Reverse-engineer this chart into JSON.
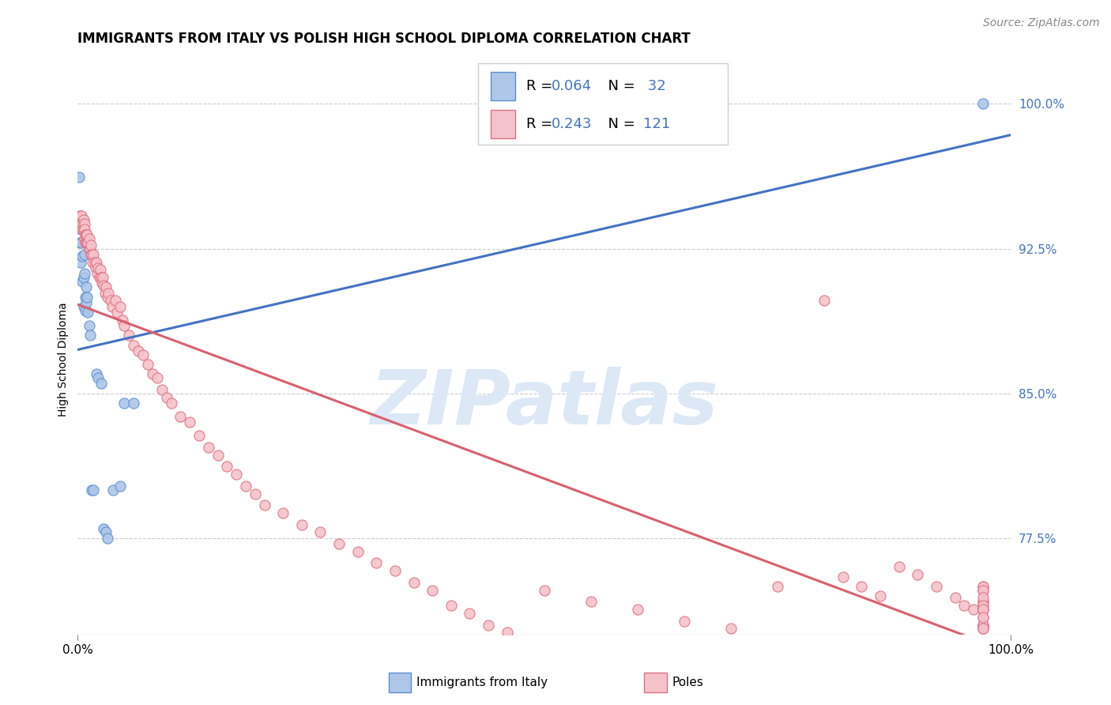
{
  "title": "IMMIGRANTS FROM ITALY VS POLISH HIGH SCHOOL DIPLOMA CORRELATION CHART",
  "source": "Source: ZipAtlas.com",
  "ylabel": "High School Diploma",
  "ytick_labels": [
    "77.5%",
    "85.0%",
    "92.5%",
    "100.0%"
  ],
  "ytick_values": [
    0.775,
    0.85,
    0.925,
    1.0
  ],
  "xtick_labels": [
    "0.0%",
    "100.0%"
  ],
  "xtick_values": [
    0.0,
    1.0
  ],
  "legend_italy_r": "0.064",
  "legend_italy_n": "32",
  "legend_poles_r": "0.243",
  "legend_poles_n": "121",
  "watermark": "ZIPatlas",
  "italy_color": "#aec6e8",
  "italy_edge_color": "#5b8fd4",
  "italy_line_color": "#4472c4",
  "poles_color": "#f5c2cb",
  "poles_edge_color": "#e07080",
  "poles_line_color": "#d9606e",
  "background_color": "#ffffff",
  "grid_color": "#cccccc",
  "tick_color": "#4472c4",
  "title_fontsize": 12,
  "source_fontsize": 10,
  "axis_label_fontsize": 10,
  "tick_fontsize": 11,
  "legend_fontsize": 13,
  "watermark_color": "#dce8f5",
  "xlim": [
    0.0,
    1.0
  ],
  "ylim": [
    0.725,
    1.01
  ],
  "italy_x": [
    0.001,
    0.002,
    0.003,
    0.003,
    0.004,
    0.005,
    0.005,
    0.006,
    0.006,
    0.007,
    0.007,
    0.008,
    0.008,
    0.009,
    0.009,
    0.01,
    0.011,
    0.012,
    0.013,
    0.015,
    0.017,
    0.02,
    0.022,
    0.025,
    0.028,
    0.03,
    0.032,
    0.038,
    0.045,
    0.05,
    0.06,
    0.97
  ],
  "italy_y": [
    0.962,
    0.928,
    0.935,
    0.918,
    0.928,
    0.921,
    0.908,
    0.91,
    0.895,
    0.922,
    0.912,
    0.9,
    0.893,
    0.897,
    0.905,
    0.9,
    0.892,
    0.885,
    0.88,
    0.8,
    0.8,
    0.86,
    0.858,
    0.855,
    0.78,
    0.778,
    0.775,
    0.8,
    0.802,
    0.845,
    0.845,
    1.0
  ],
  "poles_x": [
    0.001,
    0.002,
    0.003,
    0.003,
    0.004,
    0.004,
    0.005,
    0.005,
    0.006,
    0.006,
    0.007,
    0.007,
    0.007,
    0.008,
    0.008,
    0.009,
    0.009,
    0.01,
    0.01,
    0.011,
    0.012,
    0.012,
    0.013,
    0.014,
    0.014,
    0.015,
    0.016,
    0.017,
    0.018,
    0.019,
    0.02,
    0.021,
    0.022,
    0.023,
    0.024,
    0.025,
    0.026,
    0.027,
    0.028,
    0.029,
    0.03,
    0.032,
    0.033,
    0.035,
    0.037,
    0.04,
    0.042,
    0.045,
    0.048,
    0.05,
    0.055,
    0.06,
    0.065,
    0.07,
    0.075,
    0.08,
    0.085,
    0.09,
    0.095,
    0.1,
    0.11,
    0.12,
    0.13,
    0.14,
    0.15,
    0.16,
    0.17,
    0.18,
    0.19,
    0.2,
    0.22,
    0.24,
    0.26,
    0.28,
    0.3,
    0.32,
    0.34,
    0.36,
    0.38,
    0.4,
    0.42,
    0.44,
    0.46,
    0.5,
    0.55,
    0.6,
    0.65,
    0.7,
    0.75,
    0.8,
    0.82,
    0.84,
    0.86,
    0.88,
    0.9,
    0.92,
    0.94,
    0.95,
    0.96,
    0.97,
    0.97,
    0.97,
    0.97,
    0.97,
    0.97,
    0.97,
    0.97,
    0.97,
    0.97,
    0.97,
    0.97,
    0.97,
    0.97,
    0.97,
    0.97,
    0.97,
    0.97,
    0.97,
    0.97,
    0.97,
    0.97
  ],
  "poles_y": [
    0.94,
    0.942,
    0.942,
    0.938,
    0.938,
    0.942,
    0.938,
    0.935,
    0.935,
    0.94,
    0.938,
    0.93,
    0.935,
    0.932,
    0.928,
    0.928,
    0.932,
    0.928,
    0.932,
    0.928,
    0.925,
    0.93,
    0.925,
    0.922,
    0.927,
    0.922,
    0.918,
    0.922,
    0.918,
    0.915,
    0.918,
    0.912,
    0.915,
    0.91,
    0.914,
    0.91,
    0.907,
    0.91,
    0.906,
    0.902,
    0.905,
    0.9,
    0.902,
    0.898,
    0.895,
    0.898,
    0.892,
    0.895,
    0.888,
    0.885,
    0.88,
    0.875,
    0.872,
    0.87,
    0.865,
    0.86,
    0.858,
    0.852,
    0.848,
    0.845,
    0.838,
    0.835,
    0.828,
    0.822,
    0.818,
    0.812,
    0.808,
    0.802,
    0.798,
    0.792,
    0.788,
    0.782,
    0.778,
    0.772,
    0.768,
    0.762,
    0.758,
    0.752,
    0.748,
    0.74,
    0.736,
    0.73,
    0.726,
    0.748,
    0.742,
    0.738,
    0.732,
    0.728,
    0.75,
    0.898,
    0.755,
    0.75,
    0.745,
    0.76,
    0.756,
    0.75,
    0.744,
    0.74,
    0.738,
    0.734,
    0.73,
    0.74,
    0.738,
    0.73,
    0.728,
    0.75,
    0.748,
    0.742,
    0.738,
    0.73,
    0.728,
    0.75,
    0.748,
    0.742,
    0.738,
    0.73,
    0.728,
    0.744,
    0.74,
    0.738,
    0.734
  ]
}
